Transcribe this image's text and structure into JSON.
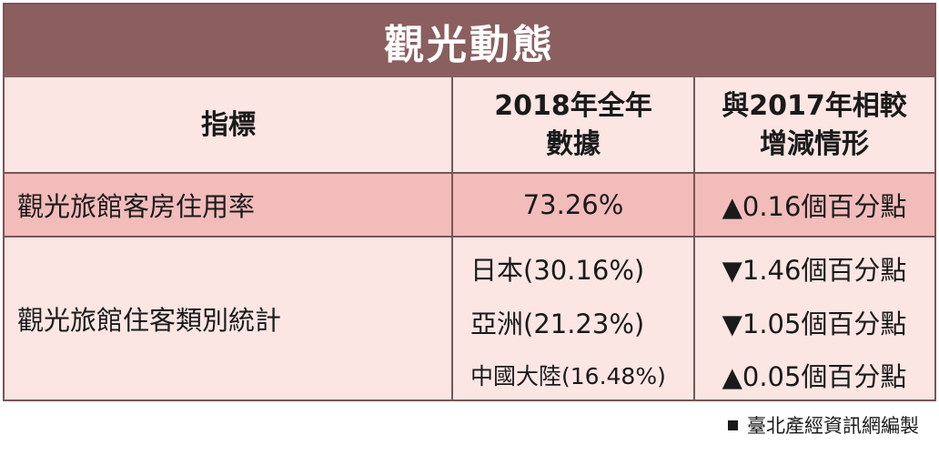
{
  "title": "觀光動態",
  "headers": {
    "col1": "指標",
    "col2_line1": "2018年全年",
    "col2_line2": "數據",
    "col3_line1": "與2017年相較",
    "col3_line2": "增減情形"
  },
  "rows": [
    {
      "indicator": "觀光旅館客房住用率",
      "value": "73.26%",
      "change": "▲0.16個百分點"
    },
    {
      "indicator": "觀光旅館住客類別統計",
      "items": [
        {
          "value": "日本(30.16%)",
          "change": "▼1.46個百分點"
        },
        {
          "value": "亞洲(21.23%)",
          "change": "▼1.05個百分點"
        },
        {
          "value": "中國大陸(16.48%)",
          "change": "▲0.05個百分點"
        }
      ]
    }
  ],
  "footer": "臺北產經資訊網編製",
  "colors": {
    "title_bg": "#8b5e5f",
    "table_bg": "#fbe6e4",
    "highlight_row_bg": "#f2bcbb",
    "border": "#7a5556"
  }
}
